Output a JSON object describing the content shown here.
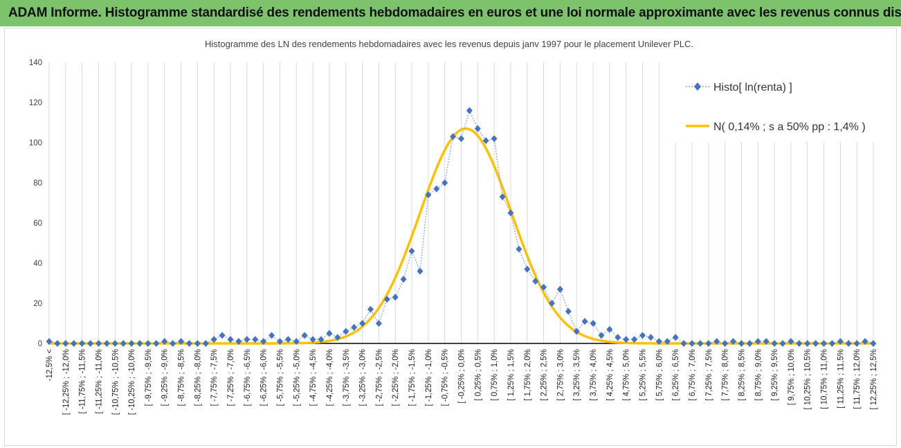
{
  "banner": {
    "title": "ADAM Informe. Histogramme standardisé des rendements hebdomadaires en euros et une loi normale approximante avec les revenus connus distribués"
  },
  "colors": {
    "banner_bg": "#7cc36b",
    "histo": "#4472c4",
    "normal": "#ffc000",
    "grid": "#d9d9d9",
    "axis": "#000000"
  },
  "chart_data": {
    "type": "line",
    "title": "Histogramme  des LN des rendements hebdomadaires avec les revenus depuis janv 1997 pour le placement Unilever PLC.",
    "ylim": [
      0,
      140
    ],
    "yticks": [
      0,
      20,
      40,
      60,
      80,
      100,
      120,
      140
    ],
    "grid": "vertical",
    "legend_position": "top-right",
    "categories": [
      "-12,5% <",
      "[ -12,25% ; -12,0%",
      "[ -11,75% ; -11,5%",
      "[ -11,25% ; -11,0%",
      "[ -10,75% ; -10,5%",
      "[ -10,25% ; -10,0%",
      "[ -9,75% ; -9,5%",
      "[ -9,25% ; -9,0%",
      "[ -8,75% ; -8,5%",
      "[ -8,25% ; -8,0%",
      "[ -7,75% ; -7,5%",
      "[ -7,25% ; -7,0%",
      "[ -6,75% ; -6,5%",
      "[ -6,25% ; -6,0%",
      "[ -5,75% ; -5,5%",
      "[ -5,25% ; -5,0%",
      "[ -4,75% ; -4,5%",
      "[ -4,25% ; -4,0%",
      "[ -3,75% ; -3,5%",
      "[ -3,25% ; -3,0%",
      "[ -2,75% ; -2,5%",
      "[ -2,25% ; -2,0%",
      "[ -1,75% ; -1,5%",
      "[ -1,25% ; -1,0%",
      "[ -0,75% ; -0,5%",
      "[ -0,25% ; 0,0%",
      "[ 0,25% ; 0,5%",
      "[ 0,75% ; 1,0%",
      "[ 1,25% ; 1,5%",
      "[ 1,75% ; 2,0%",
      "[ 2,25% ; 2,5%",
      "[ 2,75% ; 3,0%",
      "[ 3,25% ; 3,5%",
      "[ 3,75% ; 4,0%",
      "[ 4,25% ; 4,5%",
      "[ 4,75% ; 5,0%",
      "[ 5,25% ; 5,5%",
      "[ 5,75% ; 6,0%",
      "[ 6,25% ; 6,5%",
      "[ 6,75% ; 7,0%",
      "[ 7,25% ; 7,5%",
      "[ 7,75% ; 8,0%",
      "[ 8,25% ; 8,5%",
      "[ 8,75% ; 9,0%",
      "[ 9,25% ; 9,5%",
      "[ 9,75% ; 10,0%",
      "[ 10,25% ; 10,5%",
      "[ 10,75% ; 11,0%",
      "[ 11,25% ; 11,5%",
      "[ 11,75% ; 12,0%",
      "[ 12,25% ; 12,5%"
    ],
    "x": [
      -12.5,
      -12.25,
      -12.0,
      -11.75,
      -11.5,
      -11.25,
      -11.0,
      -10.75,
      -10.5,
      -10.25,
      -10.0,
      -9.75,
      -9.5,
      -9.25,
      -9.0,
      -8.75,
      -8.5,
      -8.25,
      -8.0,
      -7.75,
      -7.5,
      -7.25,
      -7.0,
      -6.75,
      -6.5,
      -6.25,
      -6.0,
      -5.75,
      -5.5,
      -5.25,
      -5.0,
      -4.75,
      -4.5,
      -4.25,
      -4.0,
      -3.75,
      -3.5,
      -3.25,
      -3.0,
      -2.75,
      -2.5,
      -2.25,
      -2.0,
      -1.75,
      -1.5,
      -1.25,
      -1.0,
      -0.75,
      -0.5,
      -0.25,
      0.0,
      0.25,
      0.5,
      0.75,
      1.0,
      1.25,
      1.5,
      1.75,
      2.0,
      2.25,
      2.5,
      2.75,
      3.0,
      3.25,
      3.5,
      3.75,
      4.0,
      4.25,
      4.5,
      4.75,
      5.0,
      5.25,
      5.5,
      5.75,
      6.0,
      6.25,
      6.5,
      6.75,
      7.0,
      7.25,
      7.5,
      7.75,
      8.0,
      8.25,
      8.5,
      8.75,
      9.0,
      9.25,
      9.5,
      9.75,
      10.0,
      10.25,
      10.5,
      10.75,
      11.0,
      11.25,
      11.5,
      11.75,
      12.0,
      12.25,
      12.5
    ],
    "series": [
      {
        "name": "Histo[ ln(renta) ]",
        "style": "dotted-diamond",
        "values": [
          1,
          0,
          0,
          0,
          0,
          0,
          0,
          0,
          0,
          0,
          0,
          0,
          0,
          0,
          1,
          0,
          1,
          0,
          0,
          0,
          2,
          4,
          2,
          1,
          2,
          2,
          1,
          4,
          1,
          2,
          1,
          4,
          2,
          2,
          5,
          3,
          6,
          8,
          10,
          17,
          10,
          22,
          23,
          32,
          46,
          36,
          74,
          77,
          80,
          103,
          102,
          116,
          107,
          101,
          102,
          73,
          65,
          47,
          37,
          31,
          28,
          20,
          27,
          16,
          6,
          11,
          10,
          4,
          7,
          3,
          2,
          2,
          4,
          3,
          1,
          1,
          3,
          0,
          0,
          0,
          0,
          1,
          0,
          1,
          0,
          0,
          1,
          1,
          0,
          0,
          1,
          0,
          0,
          0,
          0,
          0,
          1,
          0,
          0,
          1,
          0
        ]
      },
      {
        "name": "N( 0,14% ; s a 50% pp : 1,4% )",
        "style": "smooth-line",
        "mean": 0.14,
        "peak": 107,
        "sd": 1.39
      }
    ]
  }
}
